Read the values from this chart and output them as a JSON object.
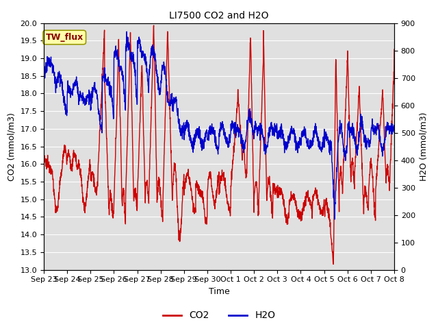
{
  "title": "LI7500 CO2 and H2O",
  "xlabel": "Time",
  "ylabel_left": "CO2 (mmol/m3)",
  "ylabel_right": "H2O (mmol/m3)",
  "ylim_left": [
    13.0,
    20.0
  ],
  "ylim_right": [
    0,
    900
  ],
  "xtick_labels": [
    "Sep 23",
    "Sep 24",
    "Sep 25",
    "Sep 26",
    "Sep 27",
    "Sep 28",
    "Sep 29",
    "Sep 30",
    "Oct 1",
    "Oct 2",
    "Oct 3",
    "Oct 4",
    "Oct 5",
    "Oct 6",
    "Oct 7",
    "Oct 8"
  ],
  "yticks_left": [
    13.0,
    13.5,
    14.0,
    14.5,
    15.0,
    15.5,
    16.0,
    16.5,
    17.0,
    17.5,
    18.0,
    18.5,
    19.0,
    19.5,
    20.0
  ],
  "yticks_right": [
    0,
    100,
    200,
    300,
    400,
    500,
    600,
    700,
    800,
    900
  ],
  "co2_color": "#cc0000",
  "h2o_color": "#0000cc",
  "background_color": "#e0e0e0",
  "figure_background": "#ffffff",
  "legend_label_co2": "CO2",
  "legend_label_h2o": "H2O",
  "annotation_text": "TW_flux",
  "annotation_bg": "#ffffaa",
  "annotation_border": "#999900",
  "linewidth": 1.0
}
